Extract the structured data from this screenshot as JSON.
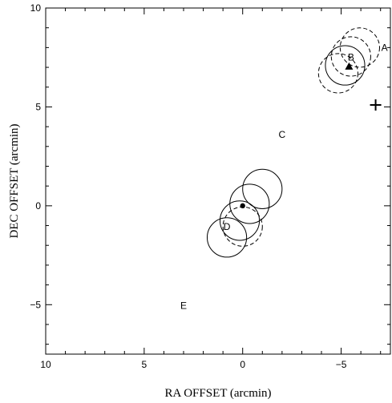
{
  "chart_data": {
    "type": "scatter",
    "xlabel": "RA OFFSET (arcmin)",
    "ylabel": "DEC OFFSET (arcmin)",
    "xlim": [
      10,
      -7.5
    ],
    "ylim": [
      -7.5,
      10
    ],
    "x_ticks": [
      10,
      5,
      0,
      -5
    ],
    "y_ticks": [
      10,
      5,
      0,
      -5
    ],
    "x_tick_labels": [
      "10",
      "5",
      "0",
      "−5"
    ],
    "y_tick_labels": [
      "10",
      "5",
      "0",
      "−5"
    ],
    "grid": false,
    "circles": [
      {
        "x": -1.0,
        "y": 0.85,
        "r": 1.0,
        "style": "solid"
      },
      {
        "x": -0.35,
        "y": 0.1,
        "r": 1.0,
        "style": "solid"
      },
      {
        "x": 0.15,
        "y": -0.75,
        "r": 1.0,
        "style": "solid"
      },
      {
        "x": 0.8,
        "y": -1.6,
        "r": 1.0,
        "style": "solid"
      },
      {
        "x": 0.0,
        "y": -1.05,
        "r": 1.0,
        "style": "dashed"
      },
      {
        "x": -5.95,
        "y": 8.0,
        "r": 1.0,
        "style": "dashed"
      },
      {
        "x": -5.5,
        "y": 7.55,
        "r": 1.0,
        "style": "dashed"
      },
      {
        "x": -5.2,
        "y": 7.1,
        "r": 1.0,
        "style": "solid"
      },
      {
        "x": -4.85,
        "y": 6.7,
        "r": 1.0,
        "style": "dashed"
      }
    ],
    "markers": [
      {
        "x": 0.0,
        "y": 0.0,
        "symbol": "dot"
      },
      {
        "x": -5.4,
        "y": 7.05,
        "symbol": "triangle"
      },
      {
        "x": -6.75,
        "y": 5.1,
        "symbol": "plus"
      }
    ],
    "annotations": [
      {
        "text": "A",
        "x": -7.2,
        "y": 8.0
      },
      {
        "text": "B",
        "x": -5.5,
        "y": 7.5
      },
      {
        "text": "C",
        "x": -2.0,
        "y": 3.6
      },
      {
        "text": "D",
        "x": 0.8,
        "y": -1.05
      },
      {
        "text": "E",
        "x": 3.0,
        "y": -5.05
      }
    ]
  }
}
